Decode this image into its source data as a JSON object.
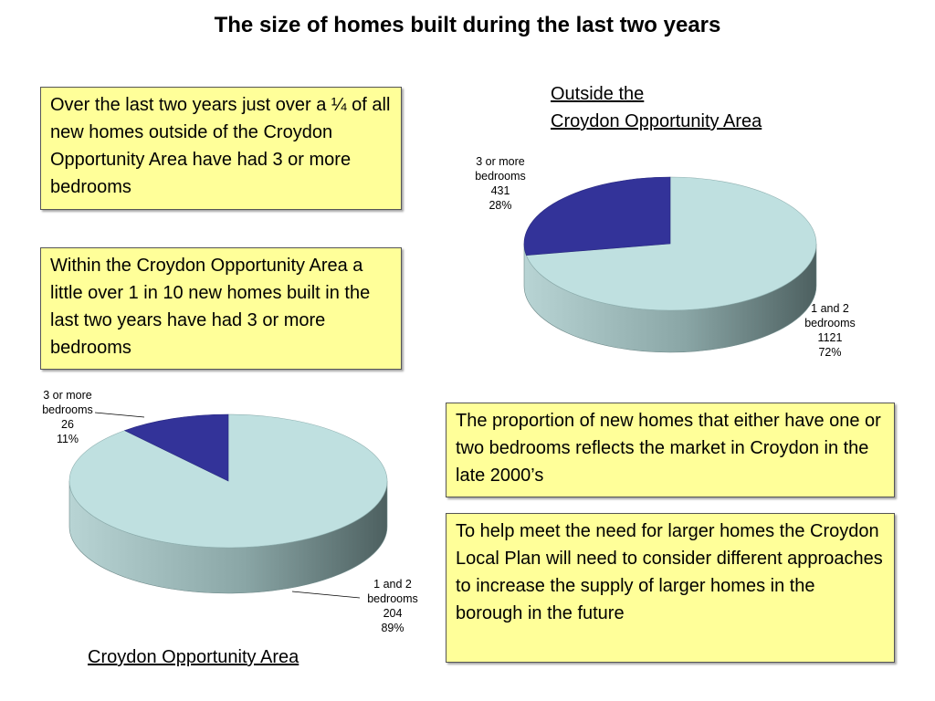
{
  "page": {
    "title": "The size of homes built during the last two years"
  },
  "notes": [
    "Over the last two years just over a ¼ of all new homes outside of the Croydon Opportunity Area have had 3 or more bedrooms",
    "Within the Croydon Opportunity Area a little over 1 in 10 new homes built in the last two years have had 3 or more bedrooms",
    "The proportion of new homes that either have one or two bedrooms reflects the market in Croydon in the late 2000’s",
    "To help meet the need for larger homes the Croydon Local Plan will need to consider different approaches to increase the supply of larger homes in the borough in the future"
  ],
  "chart_data": [
    {
      "type": "pie",
      "title_line1": "Outside the",
      "title_line2": "Croydon Opportunity Area",
      "slices": [
        {
          "label_line1": "3 or more",
          "label_line2": "bedrooms",
          "value": 431,
          "value_text": "431",
          "percent_text": "28%",
          "color": "#333399"
        },
        {
          "label_line1": "1 and 2",
          "label_line2": "bedrooms",
          "value": 1121,
          "value_text": "1121",
          "percent_text": "72%",
          "color": "#bfe0e0"
        }
      ]
    },
    {
      "type": "pie",
      "title": "Croydon Opportunity Area",
      "slices": [
        {
          "label_line1": "3 or more",
          "label_line2": "bedrooms",
          "value": 26,
          "value_text": "26",
          "percent_text": "11%",
          "color": "#333399"
        },
        {
          "label_line1": "1 and 2",
          "label_line2": "bedrooms",
          "value": 204,
          "value_text": "204",
          "percent_text": "89%",
          "color": "#bfe0e0"
        }
      ]
    }
  ]
}
